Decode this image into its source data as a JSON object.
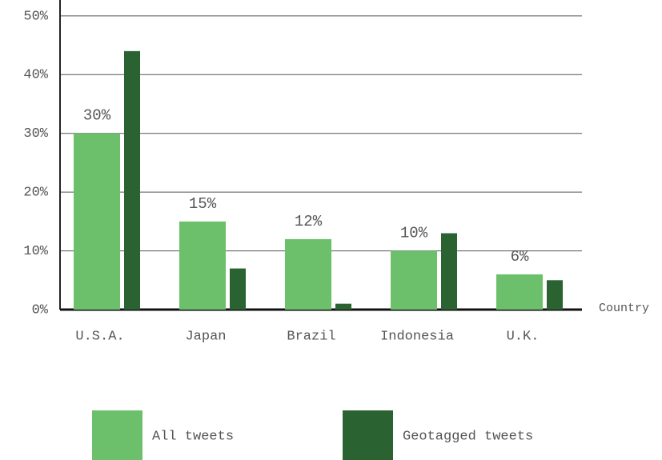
{
  "chart_data": {
    "type": "bar",
    "x_label": "Country",
    "categories": [
      "U.S.A.",
      "Japan",
      "Brazil",
      "Indonesia",
      "U.K."
    ],
    "series": [
      {
        "name": "All tweets",
        "color": "#6cc06c",
        "values": [
          30,
          15,
          12,
          10,
          6
        ],
        "value_labels": [
          "30%",
          "15%",
          "12%",
          "10%",
          "6%"
        ]
      },
      {
        "name": "Geotagged tweets",
        "color": "#2a6232",
        "values": [
          44,
          7,
          1,
          13,
          5
        ]
      }
    ],
    "ylim": [
      0,
      52.7
    ],
    "yticks": [
      {
        "value": 0,
        "label": "0%"
      },
      {
        "value": 10,
        "label": "10%"
      },
      {
        "value": 20,
        "label": "20%"
      },
      {
        "value": 30,
        "label": "30%"
      },
      {
        "value": 40,
        "label": "40%"
      },
      {
        "value": 50,
        "label": "50%"
      }
    ],
    "grid": true
  }
}
